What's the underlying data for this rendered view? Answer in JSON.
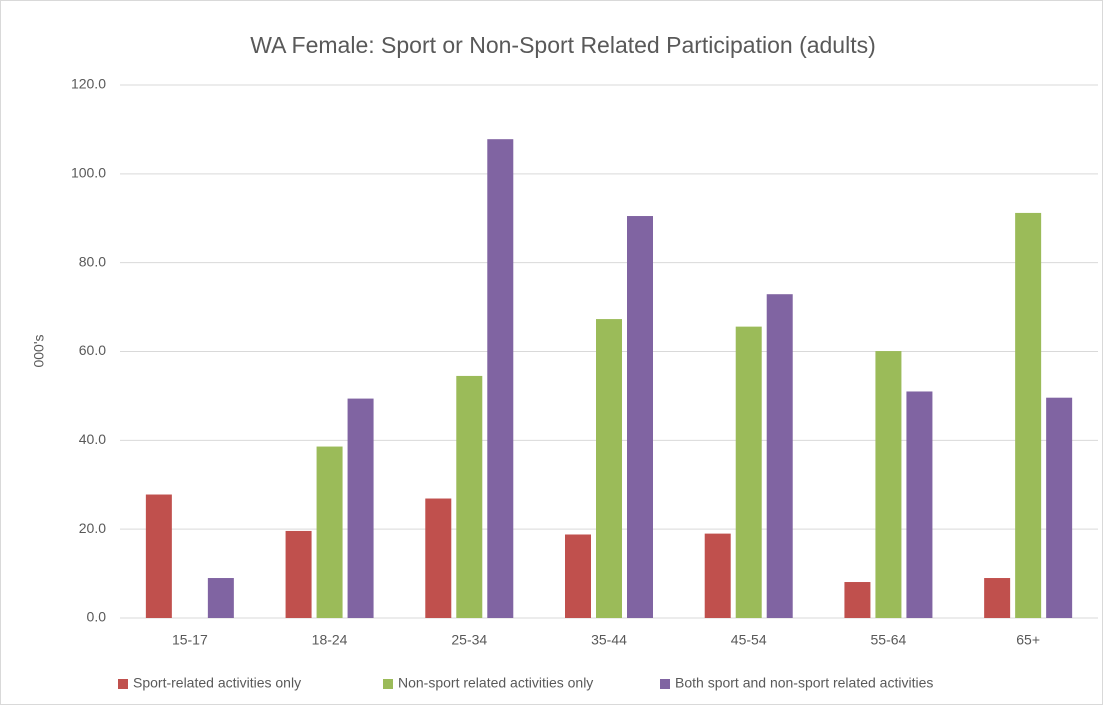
{
  "chart_data": {
    "type": "bar",
    "title": "WA Female: Sport or Non-Sport Related Participation (adults)",
    "y_label": "000's",
    "categories": [
      "15-17",
      "18-24",
      "25-34",
      "35-44",
      "45-54",
      "55-64",
      "65+"
    ],
    "series": [
      {
        "name": "Sport-related activities only",
        "color": "#c0504d",
        "values": [
          27.8,
          19.6,
          26.9,
          18.8,
          19.0,
          8.1,
          9.0
        ]
      },
      {
        "name": "Non-sport related activities only",
        "color": "#9bbb59",
        "values": [
          null,
          38.6,
          54.5,
          67.3,
          65.6,
          60.1,
          91.2
        ]
      },
      {
        "name": "Both sport and non-sport related activities",
        "color": "#8064a2",
        "values": [
          9.0,
          49.4,
          107.8,
          90.5,
          72.9,
          51.0,
          49.6
        ]
      }
    ],
    "ylim": [
      0,
      120
    ],
    "yticks": [
      {
        "value": 0,
        "label": "0.0"
      },
      {
        "value": 20,
        "label": "20.0"
      },
      {
        "value": 40,
        "label": "40.0"
      },
      {
        "value": 60,
        "label": "60.0"
      },
      {
        "value": 80,
        "label": "80.0"
      },
      {
        "value": 100,
        "label": "100.0"
      },
      {
        "value": 120,
        "label": "120.0"
      }
    ],
    "grid": true,
    "legend": "bottom"
  }
}
